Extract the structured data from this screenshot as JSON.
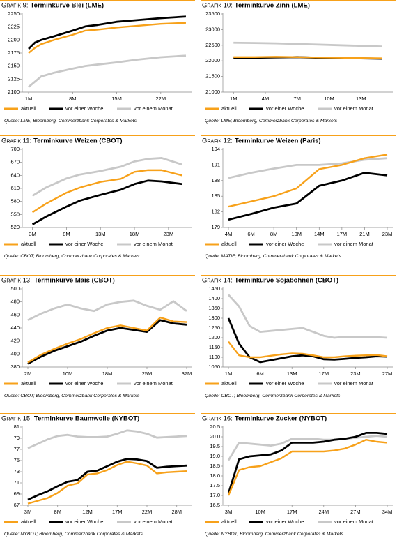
{
  "chart_data": [
    {
      "type": "line",
      "label": "Grafik 9:",
      "title": "Terminkurve Blei (LME)",
      "source": "Quelle: LME; Bloomberg, Commerzbank Corporates & Markets",
      "x": [
        1,
        2,
        3,
        5,
        8,
        10,
        12,
        15,
        18,
        22,
        26
      ],
      "xlim": [
        0,
        27
      ],
      "xticks": [
        {
          "value": 1,
          "label": "1M"
        },
        {
          "value": 8,
          "label": "8M"
        },
        {
          "value": 15,
          "label": "15M"
        },
        {
          "value": 22,
          "label": "22M"
        }
      ],
      "ylim": [
        2100,
        2250
      ],
      "yticks": [
        2100,
        2125,
        2150,
        2175,
        2200,
        2225,
        2250
      ],
      "series": [
        {
          "name": "aktuell",
          "color": "#f7a11a",
          "values": [
            2175,
            2185,
            2192,
            2200,
            2210,
            2218,
            2220,
            2224,
            2227,
            2231,
            2233
          ]
        },
        {
          "name": "vor einer Woche",
          "color": "#000000",
          "values": [
            2183,
            2195,
            2200,
            2207,
            2218,
            2226,
            2229,
            2235,
            2238,
            2242,
            2245
          ]
        },
        {
          "name": "vor einem Monat",
          "color": "#c8c8c8",
          "values": [
            2110,
            2120,
            2130,
            2137,
            2145,
            2150,
            2153,
            2157,
            2162,
            2167,
            2170
          ]
        }
      ]
    },
    {
      "type": "line",
      "label": "Grafik 10:",
      "title": "Terminkurve Zinn (LME)",
      "source": "Quelle: LME; Bloomberg, Commerzbank Corporates & Markets",
      "x": [
        1,
        3,
        5,
        7,
        9,
        11,
        13,
        15
      ],
      "xlim": [
        0,
        16
      ],
      "xticks": [
        {
          "value": 1,
          "label": "1M"
        },
        {
          "value": 4,
          "label": "4M"
        },
        {
          "value": 7,
          "label": "7M"
        },
        {
          "value": 10,
          "label": "10M"
        },
        {
          "value": 13,
          "label": "13M"
        }
      ],
      "ylim": [
        21000,
        23500
      ],
      "yticks": [
        21000,
        21500,
        22000,
        22500,
        23000,
        23500
      ],
      "series": [
        {
          "name": "aktuell",
          "color": "#f7a11a",
          "values": [
            22120,
            22120,
            22130,
            22120,
            22110,
            22100,
            22090,
            22080
          ]
        },
        {
          "name": "vor einer Woche",
          "color": "#000000",
          "values": [
            22080,
            22100,
            22110,
            22120,
            22100,
            22090,
            22080,
            22070
          ]
        },
        {
          "name": "vor einem Monat",
          "color": "#c8c8c8",
          "values": [
            22580,
            22570,
            22560,
            22540,
            22520,
            22500,
            22480,
            22460
          ]
        }
      ]
    },
    {
      "type": "line",
      "label": "Grafik 11:",
      "title": "Terminkurve Weizen (CBOT)",
      "source": "Quelle: CBOT; Bloomberg, Commerzbank Corporates & Markets",
      "x": [
        3,
        5,
        8,
        10,
        13,
        16,
        18,
        20,
        22,
        25
      ],
      "xlim": [
        1.5,
        26.5
      ],
      "xticks": [
        {
          "value": 3,
          "label": "3M"
        },
        {
          "value": 8,
          "label": "8M"
        },
        {
          "value": 13,
          "label": "13M"
        },
        {
          "value": 18,
          "label": "18M"
        },
        {
          "value": 23,
          "label": "23M"
        }
      ],
      "ylim": [
        520,
        700
      ],
      "yticks": [
        520,
        550,
        580,
        610,
        640,
        670,
        700
      ],
      "series": [
        {
          "name": "aktuell",
          "color": "#f7a11a",
          "values": [
            555,
            575,
            600,
            612,
            625,
            632,
            648,
            652,
            652,
            640
          ]
        },
        {
          "name": "vor einer Woche",
          "color": "#000000",
          "values": [
            527,
            545,
            568,
            582,
            595,
            607,
            620,
            628,
            626,
            620
          ]
        },
        {
          "name": "vor einem Monat",
          "color": "#c8c8c8",
          "values": [
            593,
            612,
            633,
            642,
            650,
            660,
            672,
            678,
            680,
            665
          ]
        }
      ]
    },
    {
      "type": "line",
      "label": "Grafik 12:",
      "title": "Terminkurve Weizen (Paris)",
      "source": "Quelle: MATIF; Bloomberg, Commerzbank Corporates & Markets",
      "categories": [
        "4M",
        "6M",
        "8M",
        "10M",
        "14M",
        "17M",
        "21M",
        "23M"
      ],
      "ylim": [
        179,
        194
      ],
      "yticks": [
        179,
        182,
        185,
        188,
        191,
        194
      ],
      "series": [
        {
          "name": "aktuell",
          "color": "#f7a11a",
          "values": [
            183,
            184,
            185,
            186.5,
            190.2,
            191,
            192.3,
            193
          ]
        },
        {
          "name": "vor einer Woche",
          "color": "#000000",
          "values": [
            180.5,
            181.6,
            182.8,
            183.6,
            187,
            188,
            189.5,
            189
          ]
        },
        {
          "name": "vor einem Monat",
          "color": "#c8c8c8",
          "values": [
            188.5,
            189.5,
            190.3,
            191,
            191,
            191.3,
            192,
            192.3
          ]
        }
      ]
    },
    {
      "type": "line",
      "label": "Grafik 13:",
      "title": "Terminkurve Mais (CBOT)",
      "source": "Quelle: CBOT; Bloomberg, Commerzbank Corporates & Markets",
      "categories": [
        "2M",
        null,
        null,
        "10M",
        null,
        null,
        "18M",
        null,
        null,
        "25M",
        null,
        null,
        "37M"
      ],
      "ylim": [
        380,
        500
      ],
      "yticks": [
        380,
        400,
        420,
        440,
        460,
        480,
        500
      ],
      "series": [
        {
          "name": "aktuell",
          "color": "#f7a11a",
          "values": [
            387,
            399,
            408,
            416,
            423,
            432,
            440,
            444,
            440,
            436,
            456,
            450,
            449
          ]
        },
        {
          "name": "vor einer Woche",
          "color": "#000000",
          "values": [
            385,
            396,
            405,
            412,
            419,
            428,
            436,
            440,
            437,
            434,
            452,
            447,
            445
          ]
        },
        {
          "name": "vor einem Monat",
          "color": "#c8c8c8",
          "values": [
            452,
            462,
            470,
            476,
            470,
            466,
            476,
            480,
            482,
            474,
            468,
            481,
            466
          ]
        }
      ]
    },
    {
      "type": "line",
      "label": "Grafik 14:",
      "title": "Terminkurve Sojabohnen (CBOT)",
      "source": "Quelle: CBOT; Bloomberg, Commerzbank Corporates & Markets",
      "categories": [
        "1M",
        null,
        null,
        "6M",
        null,
        null,
        "13M",
        null,
        null,
        "17M",
        null,
        null,
        "23M",
        null,
        null,
        "27M"
      ],
      "ylim": [
        1050,
        1450
      ],
      "yticks": [
        1050,
        1100,
        1150,
        1200,
        1250,
        1300,
        1350,
        1400,
        1450
      ],
      "series": [
        {
          "name": "aktuell",
          "color": "#f7a11a",
          "values": [
            1180,
            1110,
            1100,
            1100,
            1108,
            1115,
            1120,
            1118,
            1110,
            1100,
            1100,
            1105,
            1108,
            1110,
            1112,
            1105
          ]
        },
        {
          "name": "vor einer Woche",
          "color": "#000000",
          "values": [
            1300,
            1170,
            1100,
            1075,
            1085,
            1095,
            1105,
            1110,
            1105,
            1090,
            1088,
            1092,
            1097,
            1100,
            1105,
            1103
          ]
        },
        {
          "name": "vor einem Monat",
          "color": "#c8c8c8",
          "values": [
            1420,
            1360,
            1260,
            1230,
            1235,
            1240,
            1245,
            1250,
            1230,
            1210,
            1200,
            1205,
            1205,
            1205,
            1203,
            1200
          ]
        }
      ]
    },
    {
      "type": "line",
      "label": "Grafik 15:",
      "title": "Terminkurve Baumwolle (NYBOT)",
      "source": "Quelle: NYBOT; Bloomberg, Commerzbank Corporates & Markets",
      "categories": [
        "3M",
        null,
        null,
        "8M",
        null,
        null,
        "12M",
        null,
        null,
        "17M",
        null,
        null,
        "22M",
        null,
        null,
        "28M",
        null
      ],
      "ylim": [
        67,
        81
      ],
      "yticks": [
        67,
        69,
        71,
        73,
        75,
        77,
        79,
        81
      ],
      "series": [
        {
          "name": "aktuell",
          "color": "#f7a11a",
          "values": [
            67.3,
            67.8,
            68.3,
            69.2,
            70.5,
            70.9,
            72.5,
            72.7,
            73.3,
            74.2,
            74.8,
            74.5,
            74.1,
            72.7,
            72.9,
            73.0,
            73.1
          ]
        },
        {
          "name": "vor einer Woche",
          "color": "#000000",
          "values": [
            68.0,
            68.8,
            69.5,
            70.4,
            71.2,
            71.5,
            73.0,
            73.2,
            74.0,
            74.8,
            75.3,
            75.2,
            74.9,
            73.7,
            73.9,
            74.0,
            74.1
          ]
        },
        {
          "name": "vor einem Monat",
          "color": "#c8c8c8",
          "values": [
            77.2,
            78.0,
            78.8,
            79.4,
            79.6,
            79.3,
            79.2,
            79.2,
            79.3,
            79.8,
            80.4,
            80.2,
            79.8,
            79.1,
            79.2,
            79.3,
            79.4
          ]
        }
      ]
    },
    {
      "type": "line",
      "label": "Grafik 16:",
      "title": "Terminkurve Zucker (NYBOT)",
      "source": "Quelle: NYBOT; Bloomberg, Commerzbank Corporates & Markets",
      "categories": [
        "3M",
        null,
        null,
        "10M",
        null,
        null,
        "17M",
        null,
        null,
        "24M",
        null,
        null,
        "27M",
        null,
        null,
        "34M"
      ],
      "ylim": [
        16.5,
        20.5
      ],
      "yticks": [
        16.5,
        {
          "value": 17,
          "label": "17.0"
        },
        17.5,
        {
          "value": 18,
          "label": "18.0"
        },
        18.5,
        {
          "value": 19,
          "label": "19.0"
        },
        19.5,
        {
          "value": 20,
          "label": "20.0"
        },
        20.5
      ],
      "series": [
        {
          "name": "aktuell",
          "color": "#f7a11a",
          "values": [
            17.0,
            18.3,
            18.45,
            18.5,
            18.7,
            18.9,
            19.25,
            19.25,
            19.25,
            19.25,
            19.3,
            19.4,
            19.6,
            19.85,
            19.75,
            19.7
          ]
        },
        {
          "name": "vor einer Woche",
          "color": "#000000",
          "values": [
            17.1,
            18.85,
            19.0,
            19.05,
            19.1,
            19.3,
            19.7,
            19.7,
            19.7,
            19.75,
            19.85,
            19.9,
            20.0,
            20.2,
            20.2,
            20.15
          ]
        },
        {
          "name": "vor einem Monat",
          "color": "#c8c8c8",
          "values": [
            18.8,
            19.7,
            19.65,
            19.6,
            19.55,
            19.65,
            19.9,
            19.9,
            19.9,
            19.85,
            19.85,
            19.9,
            19.95,
            20.0,
            20.05,
            20.0
          ]
        }
      ]
    }
  ]
}
